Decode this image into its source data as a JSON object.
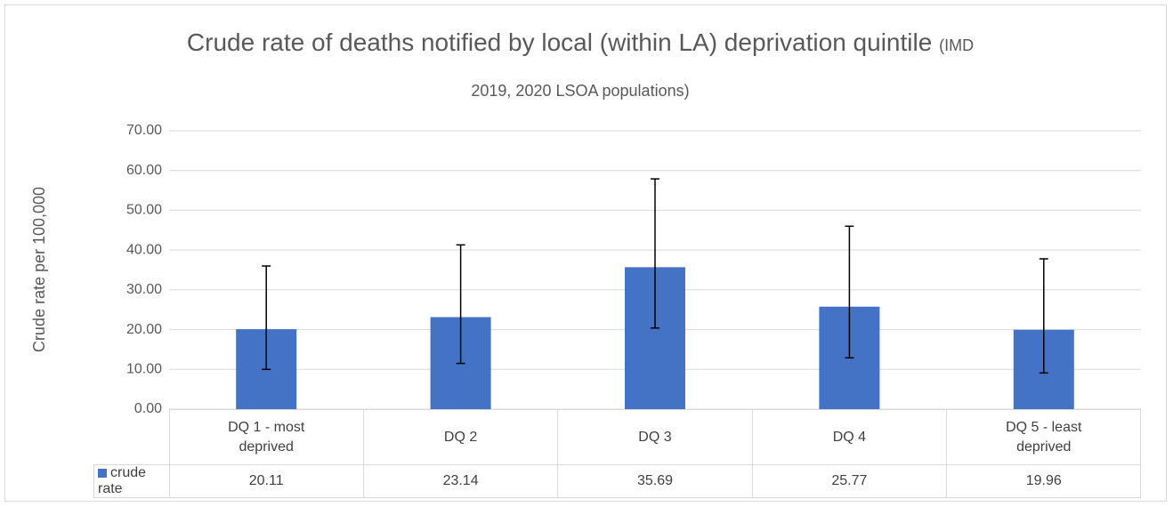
{
  "chart_data": {
    "type": "bar",
    "title": "Crude rate of deaths notified by local (within LA)  deprivation quintile",
    "subtitle": "(IMD 2019, 2020 LSOA populations)",
    "y_label": "Crude rate per 100,000",
    "categories": [
      "DQ 1 - most deprived",
      "DQ 2",
      "DQ 3",
      "DQ 4",
      "DQ 5 - least deprived"
    ],
    "series": [
      {
        "name": "crude rate",
        "color": "#4472c4",
        "values": [
          20.11,
          23.14,
          35.69,
          25.77,
          19.96
        ],
        "lower": [
          10.0,
          11.5,
          20.4,
          12.9,
          9.1
        ],
        "upper": [
          36.0,
          41.3,
          57.9,
          46.0,
          37.8
        ]
      }
    ],
    "ylim": [
      0,
      70
    ],
    "yticks": [
      {
        "value": 0,
        "label": "0.00"
      },
      {
        "value": 10,
        "label": "10.00"
      },
      {
        "value": 20,
        "label": "20.00"
      },
      {
        "value": 30,
        "label": "30.00"
      },
      {
        "value": 40,
        "label": "40.00"
      },
      {
        "value": 50,
        "label": "50.00"
      },
      {
        "value": 60,
        "label": "60.00"
      },
      {
        "value": 70,
        "label": "70.00"
      }
    ],
    "grid": true,
    "data_table": true
  }
}
